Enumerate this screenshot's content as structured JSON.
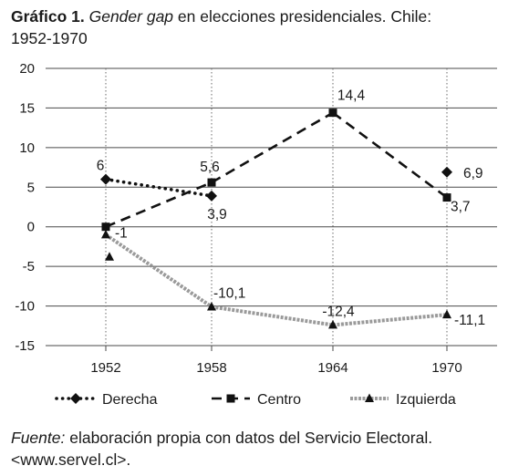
{
  "title": {
    "prefix": "Gráfico 1.",
    "italic": "Gender gap",
    "rest": " en elecciones presidenciales. Chile:",
    "line2": "1952-1970"
  },
  "source": {
    "italic": "Fuente:",
    "text": " elaboración propia con datos del Servicio Electoral.",
    "line2": "<www.servel.cl>."
  },
  "chart_data": {
    "type": "line",
    "categories": [
      "1952",
      "1958",
      "1964",
      "1970"
    ],
    "ylim": [
      -15,
      20
    ],
    "yticks": [
      20,
      15,
      10,
      5,
      0,
      -5,
      -10,
      -15
    ],
    "ytick_labels": [
      "20",
      "15",
      "10",
      "5",
      "0",
      "-5",
      "-10",
      "-15"
    ],
    "grid": true,
    "legend_position": "bottom",
    "series": [
      {
        "name": "Derecha",
        "style": "dotted",
        "marker": "diamond",
        "points": [
          {
            "x": "1952",
            "y": 6,
            "label": "6"
          },
          {
            "x": "1958",
            "y": 3.9,
            "label": "3,9"
          },
          {
            "x": "1970",
            "y": 6.9,
            "label": "6,9"
          }
        ]
      },
      {
        "name": "Centro",
        "style": "dashed",
        "marker": "square",
        "points": [
          {
            "x": "1952",
            "y": 0,
            "label": ""
          },
          {
            "x": "1958",
            "y": 5.6,
            "label": "5,6"
          },
          {
            "x": "1964",
            "y": 14.4,
            "label": "14,4"
          },
          {
            "x": "1970",
            "y": 3.7,
            "label": "3,7"
          }
        ]
      },
      {
        "name": "Izquierda",
        "style": "zigzag",
        "marker": "triangle",
        "points": [
          {
            "x": "1952",
            "y": -1,
            "label": "-1"
          },
          {
            "x": "1958",
            "y": -10.1,
            "label": "-10,1"
          },
          {
            "x": "1964",
            "y": -12.4,
            "label": "-12,4"
          },
          {
            "x": "1970",
            "y": -11.1,
            "label": "-11,1"
          }
        ]
      }
    ]
  }
}
